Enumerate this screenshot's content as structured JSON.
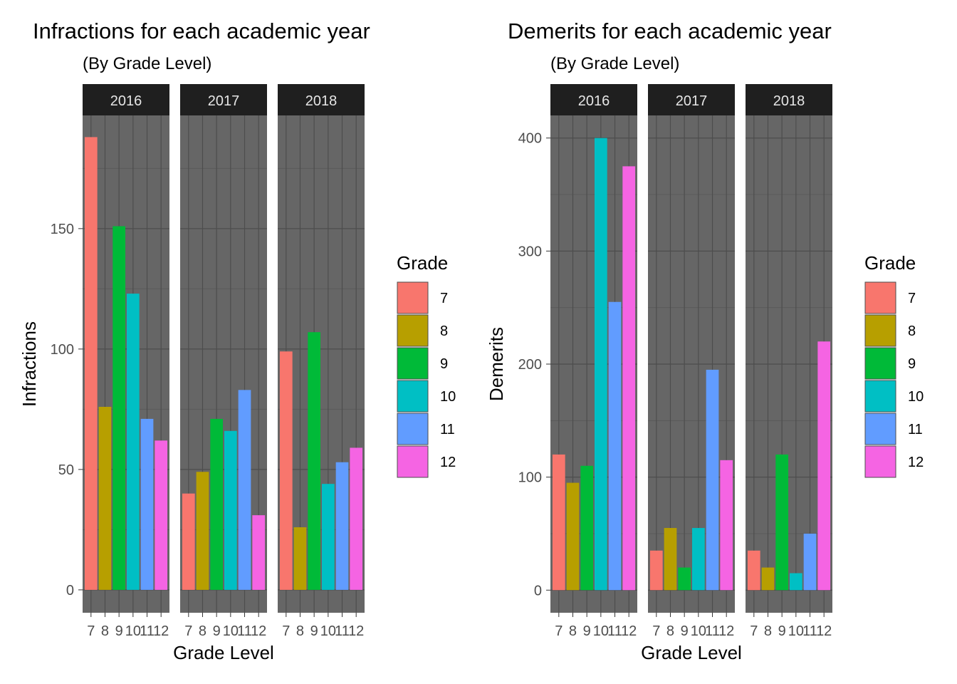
{
  "chart_data": [
    {
      "type": "bar",
      "title": "Infractions for each academic year",
      "subtitle": "(By Grade Level)",
      "xlabel": "Grade Level",
      "ylabel": "Infractions",
      "facets": [
        "2016",
        "2017",
        "2018"
      ],
      "categories": [
        "7",
        "8",
        "9",
        "10",
        "11",
        "12"
      ],
      "ylim": [
        -9.5,
        197
      ],
      "yticks": [
        0,
        50,
        100,
        150
      ],
      "values": {
        "2016": [
          188,
          76,
          151,
          123,
          71,
          62
        ],
        "2017": [
          40,
          49,
          71,
          66,
          83,
          31
        ],
        "2018": [
          99,
          26,
          107,
          44,
          53,
          59
        ]
      },
      "legend": {
        "title": "Grade",
        "position": "right",
        "entries": [
          "7",
          "8",
          "9",
          "10",
          "11",
          "12"
        ]
      },
      "grid": true
    },
    {
      "type": "bar",
      "title": "Demerits for each academic year",
      "subtitle": "(By Grade Level)",
      "xlabel": "Grade Level",
      "ylabel": "Demerits",
      "facets": [
        "2016",
        "2017",
        "2018"
      ],
      "categories": [
        "7",
        "8",
        "9",
        "10",
        "11",
        "12"
      ],
      "ylim": [
        -20,
        420
      ],
      "yticks": [
        0,
        100,
        200,
        300,
        400
      ],
      "values": {
        "2016": [
          120,
          95,
          110,
          400,
          255,
          375
        ],
        "2017": [
          35,
          55,
          20,
          55,
          195,
          115
        ],
        "2018": [
          35,
          20,
          120,
          15,
          50,
          220
        ]
      },
      "legend": {
        "title": "Grade",
        "position": "right",
        "entries": [
          "7",
          "8",
          "9",
          "10",
          "11",
          "12"
        ]
      },
      "grid": true
    }
  ],
  "colors": {
    "grades": [
      "#F8766D",
      "#B79F00",
      "#00BA38",
      "#00BFC4",
      "#619CFF",
      "#F564E3"
    ],
    "panel_background": "#666666",
    "strip_background": "#1F1F1F",
    "grid_major": "#4D4D4D",
    "grid_minor": "#5A5A5A"
  }
}
